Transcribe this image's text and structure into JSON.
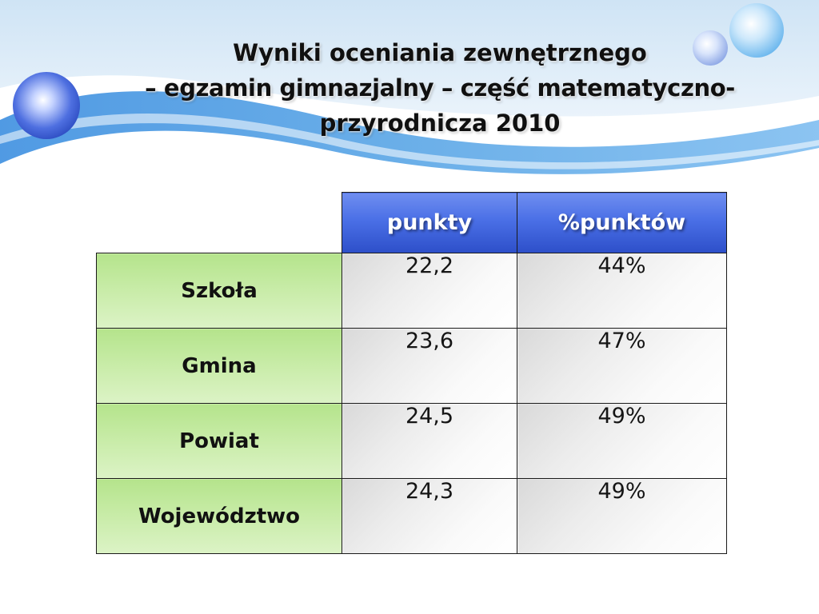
{
  "slide": {
    "title_line1": "Wyniki oceniania zewnętrznego",
    "title_line2": "– egzamin gimnazjalny – część matematyczno-",
    "title_line3": "przyrodnicza 2010"
  },
  "table": {
    "headers": [
      "punkty",
      "%punktów"
    ],
    "rows": [
      {
        "label": "Szkoła",
        "points": "22,2",
        "percent": "44%"
      },
      {
        "label": "Gmina",
        "points": "23,6",
        "percent": "47%"
      },
      {
        "label": "Powiat",
        "points": "24,5",
        "percent": "49%"
      },
      {
        "label": "Województwo",
        "points": "24,3",
        "percent": "49%"
      }
    ]
  },
  "colors": {
    "header_blue": "#4a6fe6",
    "label_green": "#c9eca9",
    "value_gray": "#ececec",
    "band_blue": "#5aa6e6"
  }
}
